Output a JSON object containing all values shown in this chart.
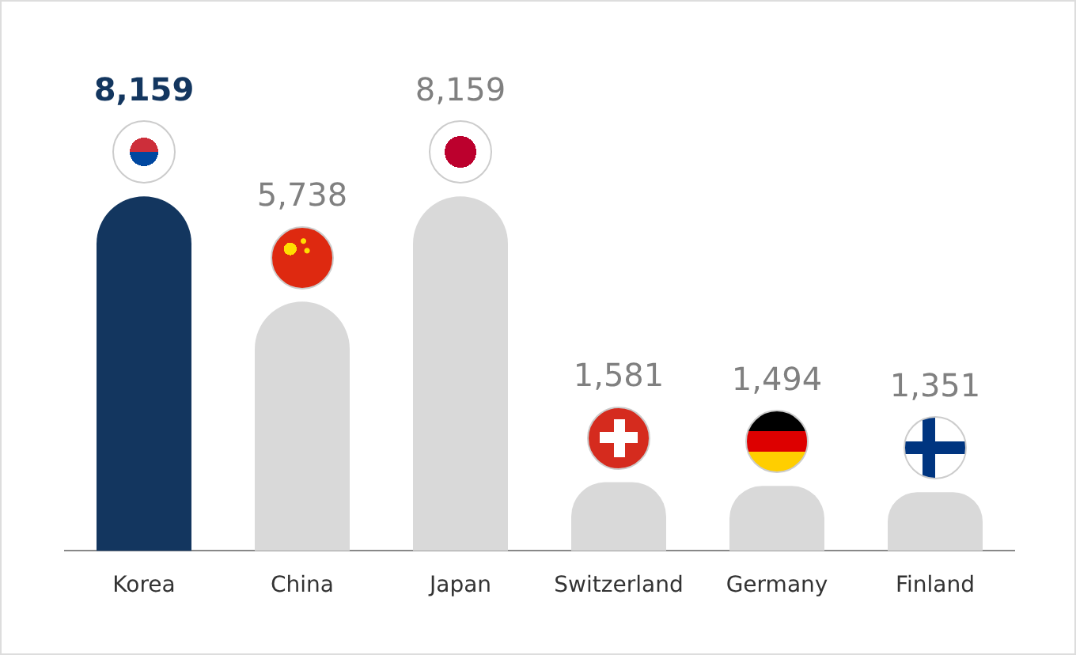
{
  "chart_data": {
    "type": "bar",
    "categories": [
      "Korea",
      "China",
      "Japan",
      "Switzerland",
      "Germany",
      "Finland"
    ],
    "values": [
      8159,
      5738,
      8159,
      1581,
      1494,
      1351
    ],
    "colors": [
      "#13365f",
      "#d9d9d9",
      "#d9d9d9",
      "#d9d9d9",
      "#d9d9d9",
      "#d9d9d9"
    ],
    "value_labels": [
      "8,159",
      "5,738",
      "8,159",
      "1,581",
      "1,494",
      "1,351"
    ],
    "grid": false,
    "legend": false
  }
}
